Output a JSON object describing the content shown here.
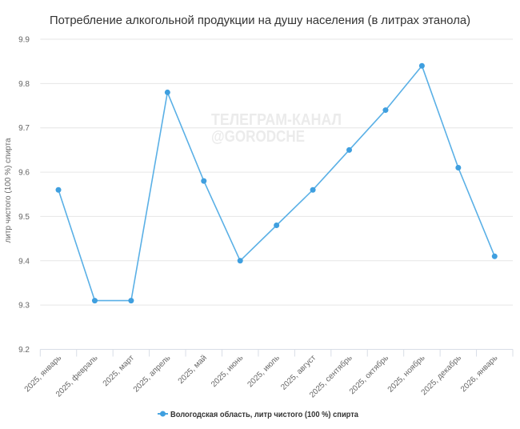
{
  "title": "Потребление алкогольной продукции на душу населения (в литрах этанола)",
  "watermark": {
    "line1": "ТЕЛЕГРАМ-КАНАЛ",
    "line2": "@GORODCHE"
  },
  "legend": {
    "items": [
      {
        "label": "Вологодская область, литр чистого (100 %) спирта",
        "color": "#4ea8e2",
        "icon": "line-with-circle-marker"
      }
    ]
  },
  "colors": {
    "background": "#ffffff",
    "series": "#5ab0e6",
    "marker": "#3f9fdf",
    "grid": "#e6e6e6",
    "axis": "#d8dde6",
    "label": "#666666",
    "title": "#333333",
    "watermark": "#ebebeb"
  },
  "chart_data": {
    "type": "line",
    "title": "Потребление алкогольной продукции на душу населения (в литрах этанола)",
    "xlabel": "",
    "ylabel": "литр чистого (100 %) спирта",
    "ylim": [
      9.2,
      9.9
    ],
    "yticks": [
      "9.2",
      "9.3",
      "9.4",
      "9.5",
      "9.6",
      "9.7",
      "9.8",
      "9.9"
    ],
    "grid": true,
    "legend_position": "bottom",
    "categories": [
      "2025, январь",
      "2025, февраль",
      "2025, март",
      "2025, апрель",
      "2025, май",
      "2025, июнь",
      "2025, июль",
      "2025, август",
      "2025, сентябрь",
      "2025, октябрь",
      "2025, ноябрь",
      "2025, декабрь",
      "2026, январь"
    ],
    "series": [
      {
        "name": "Вологодская область, литр чистого (100 %) спирта",
        "values": [
          9.56,
          9.31,
          9.31,
          9.78,
          9.58,
          9.4,
          9.48,
          9.56,
          9.65,
          9.74,
          9.84,
          9.61,
          9.41
        ]
      }
    ]
  }
}
